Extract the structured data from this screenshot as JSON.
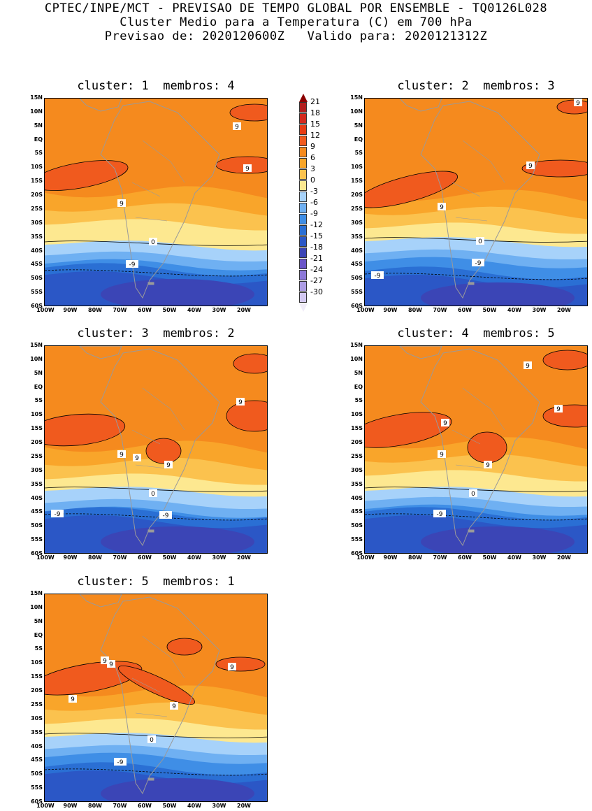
{
  "header": {
    "line1": "CPTEC/INPE/MCT - PREVISAO DE TEMPO GLOBAL POR ENSEMBLE - TQ0126L028",
    "line2": "Cluster Medio para a Temperatura (C) em 700 hPa",
    "line3": "Previsao de: 2020120600Z   Valido para: 2020121312Z"
  },
  "panels": [
    {
      "title": "cluster: 1  membros: 4"
    },
    {
      "title": "cluster: 2  membros: 3"
    },
    {
      "title": "cluster: 3  membros: 2"
    },
    {
      "title": "cluster: 4  membros: 5"
    },
    {
      "title": "cluster: 5  membros: 1"
    }
  ],
  "axes": {
    "lat_ticks": [
      "15N",
      "10N",
      "5N",
      "EQ",
      "5S",
      "10S",
      "15S",
      "20S",
      "25S",
      "30S",
      "35S",
      "40S",
      "45S",
      "50S",
      "55S",
      "60S"
    ],
    "lon_ticks": [
      "100W",
      "90W",
      "80W",
      "70W",
      "60W",
      "50W",
      "40W",
      "30W",
      "20W"
    ]
  },
  "contour_labels": {
    "warm": "9",
    "zero": "0",
    "cold": "-9"
  },
  "colorbar": {
    "ticks": [
      "21",
      "18",
      "15",
      "12",
      "9",
      "6",
      "3",
      "0",
      "-3",
      "-6",
      "-9",
      "-12",
      "-15",
      "-18",
      "-21",
      "-24",
      "-27",
      "-30"
    ],
    "colors": [
      "#b21e1e",
      "#d22a1e",
      "#e63c14",
      "#f05a1e",
      "#f58a1e",
      "#f9a52a",
      "#fbc24e",
      "#fde890",
      "#a7d2fa",
      "#6fb0f2",
      "#3f8ee6",
      "#2a6fd4",
      "#2b57c6",
      "#3b45b6",
      "#6a55c8",
      "#8c78d8",
      "#ad9de4",
      "#d2c8f0"
    ]
  }
}
